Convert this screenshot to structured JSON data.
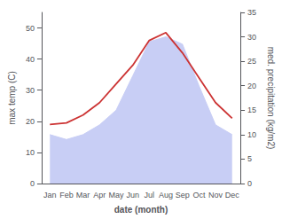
{
  "chart_data": {
    "type": "line",
    "categories": [
      "Jan",
      "Feb",
      "Mar",
      "Apr",
      "May",
      "Jun",
      "Jul",
      "Aug",
      "Sep",
      "Oct",
      "Nov",
      "Dec"
    ],
    "series": [
      {
        "type": "area",
        "axis": "y2",
        "color": "#c8cef5",
        "values": [
          10.0,
          9.0,
          10.0,
          12.0,
          15.0,
          22.0,
          29.0,
          30.0,
          28.5,
          20.0,
          12.0,
          10.0
        ]
      },
      {
        "type": "line",
        "color": "#cc3333",
        "values": [
          19.0,
          19.5,
          22.0,
          26.0,
          32.0,
          38.0,
          46.0,
          48.5,
          42.0,
          34.0,
          26.0,
          21.0
        ]
      }
    ],
    "xlabel": "date (month)",
    "ylabel": "max temp (C)",
    "y2label": "med. precipitation (kg/m2)",
    "ylim": [
      0,
      55
    ],
    "yticks": [
      0,
      10,
      20,
      30,
      40,
      50
    ],
    "y2lim": [
      0,
      35
    ],
    "y2ticks": [
      0,
      5,
      10,
      15,
      20,
      25,
      30,
      35
    ],
    "grid": false
  }
}
